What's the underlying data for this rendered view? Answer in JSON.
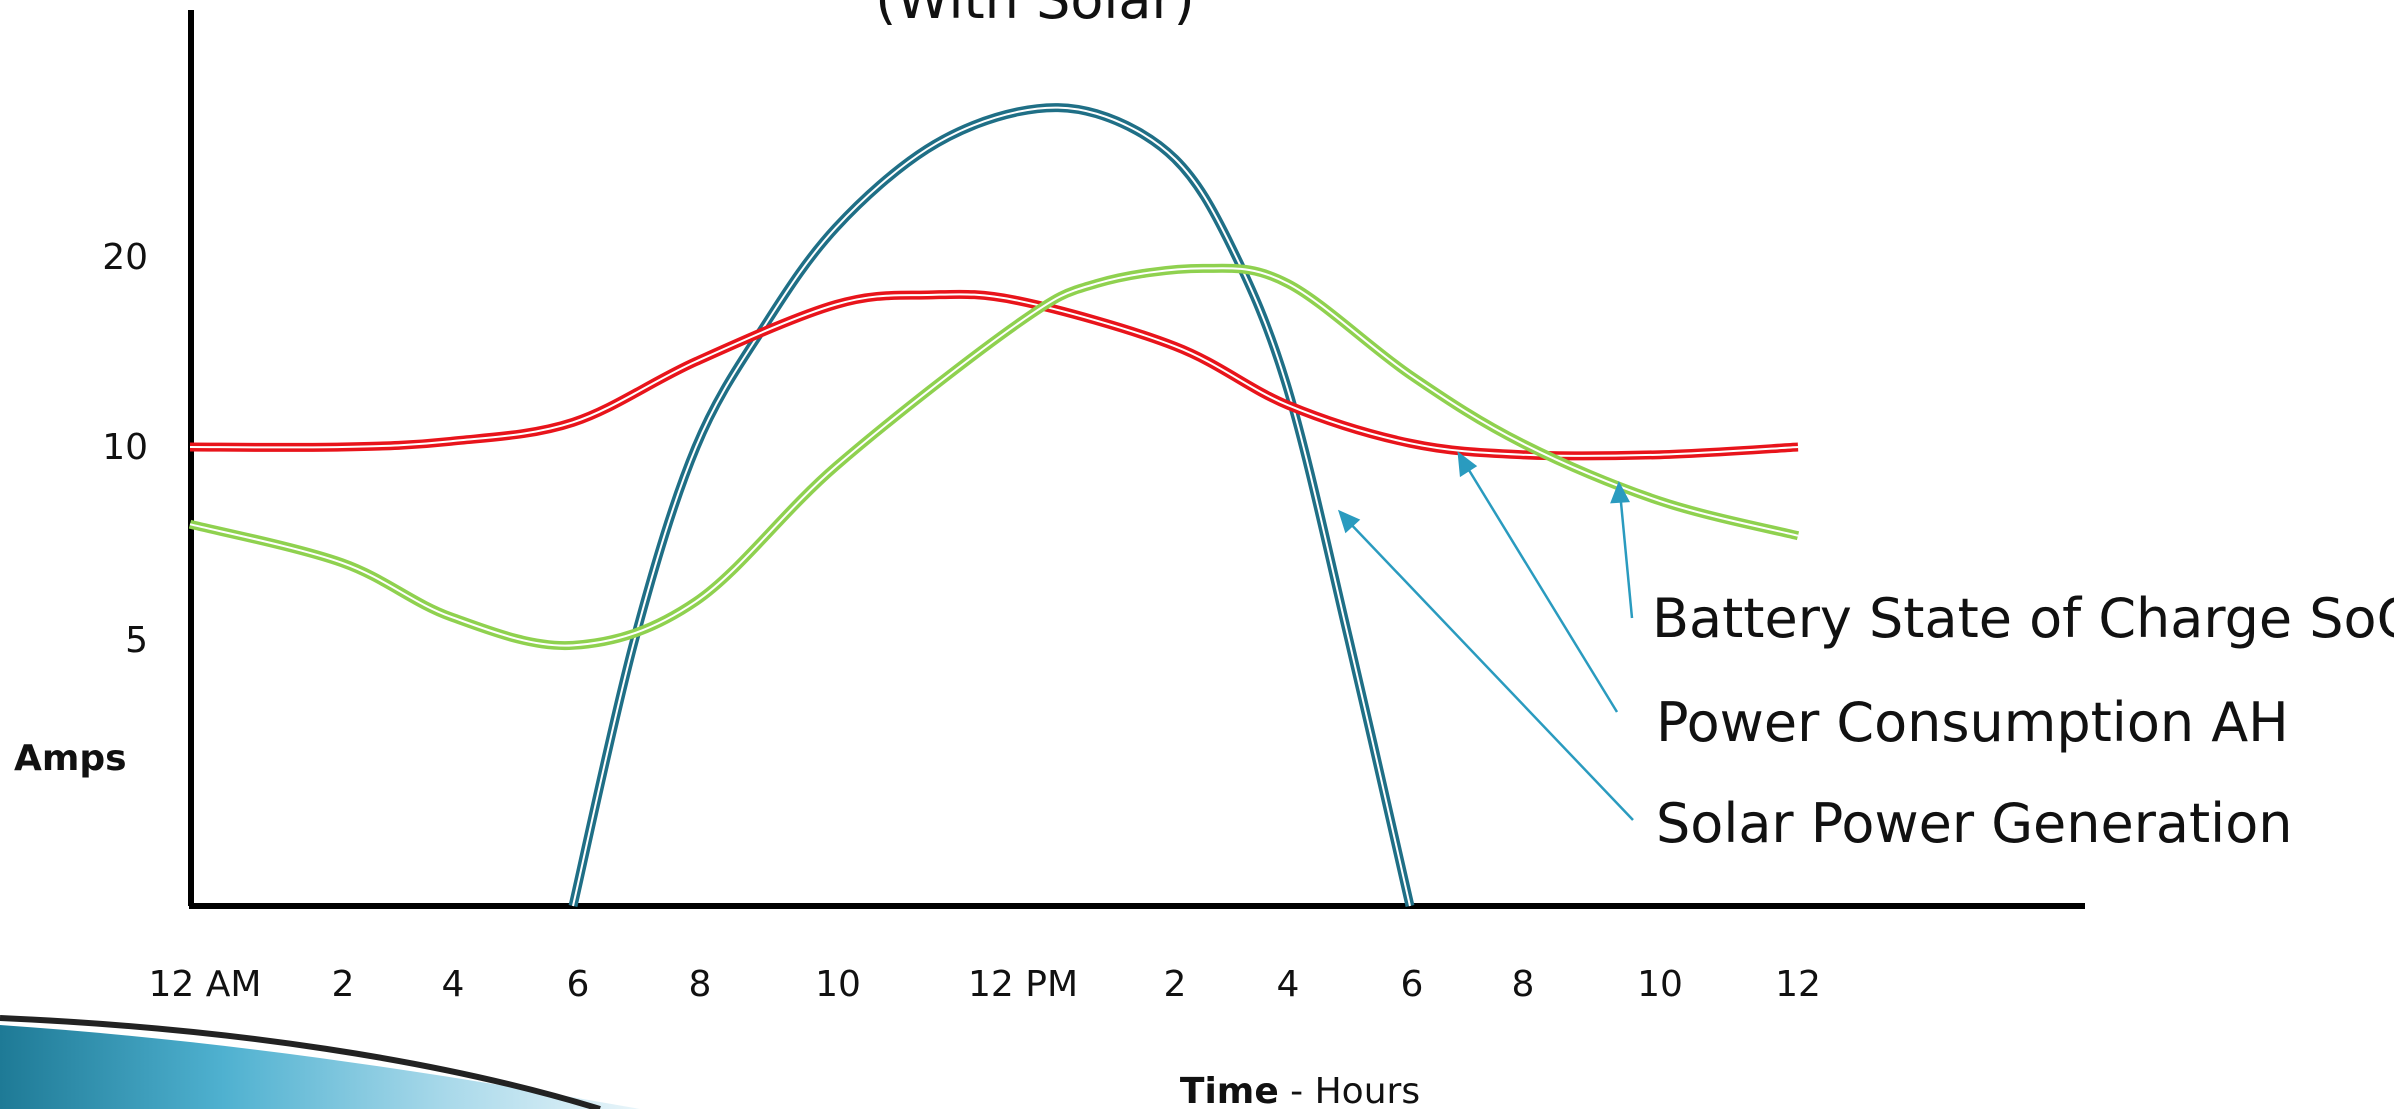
{
  "chart_data": {
    "type": "line",
    "title": "(With Solar)",
    "xlabel_bold": "Time",
    "xlabel_rest": " - Hours",
    "ylabel": "Amps",
    "x_ticks": [
      "12 AM",
      "2",
      "4",
      "6",
      "8",
      "10",
      "12 PM",
      "2",
      "4",
      "6",
      "8",
      "10",
      "12"
    ],
    "y_ticks": [
      {
        "label": "5",
        "value": 5
      },
      {
        "label": "10",
        "value": 10
      },
      {
        "label": "20",
        "value": 20
      }
    ],
    "series": [
      {
        "name": "Solar Power Generation",
        "color": "#1f6f86",
        "points": [
          [
            6,
            0
          ],
          [
            7,
            5
          ],
          [
            8,
            10
          ],
          [
            9,
            16.5
          ],
          [
            10,
            21.5
          ],
          [
            11,
            25.5
          ],
          [
            12,
            27.4
          ],
          [
            13,
            27.3
          ],
          [
            14,
            25
          ],
          [
            15,
            20.5
          ],
          [
            16,
            13
          ],
          [
            17,
            5
          ],
          [
            18,
            0
          ]
        ]
      },
      {
        "name": "Power Consumption AH",
        "color": "#e8141b",
        "points": [
          [
            0,
            10
          ],
          [
            2,
            10
          ],
          [
            4,
            10.3
          ],
          [
            6,
            11.3
          ],
          [
            8,
            14.5
          ],
          [
            10,
            17.5
          ],
          [
            11,
            18
          ],
          [
            12,
            17.7
          ],
          [
            14,
            15.3
          ],
          [
            16,
            12.2
          ],
          [
            18,
            10.2
          ],
          [
            20,
            9.8
          ],
          [
            22,
            9.8
          ],
          [
            24,
            10
          ]
        ]
      },
      {
        "name": "Battery State of Charge SoC",
        "color": "#8fd14f",
        "points": [
          [
            0,
            8
          ],
          [
            2,
            7
          ],
          [
            4,
            5.6
          ],
          [
            6,
            4.9
          ],
          [
            8,
            6
          ],
          [
            10,
            9.5
          ],
          [
            12,
            16.5
          ],
          [
            13,
            18.6
          ],
          [
            14.5,
            19.4
          ],
          [
            16,
            18.6
          ],
          [
            18,
            13.8
          ],
          [
            20,
            10.2
          ],
          [
            22,
            8.6
          ],
          [
            24,
            7.7
          ]
        ]
      }
    ],
    "annotations": [
      "Battery State of Charge SoC",
      "Power Consumption AH",
      "Solar Power Generation"
    ]
  },
  "colors": {
    "accent_arrow": "#2a9bbf",
    "axis": "#000000"
  }
}
